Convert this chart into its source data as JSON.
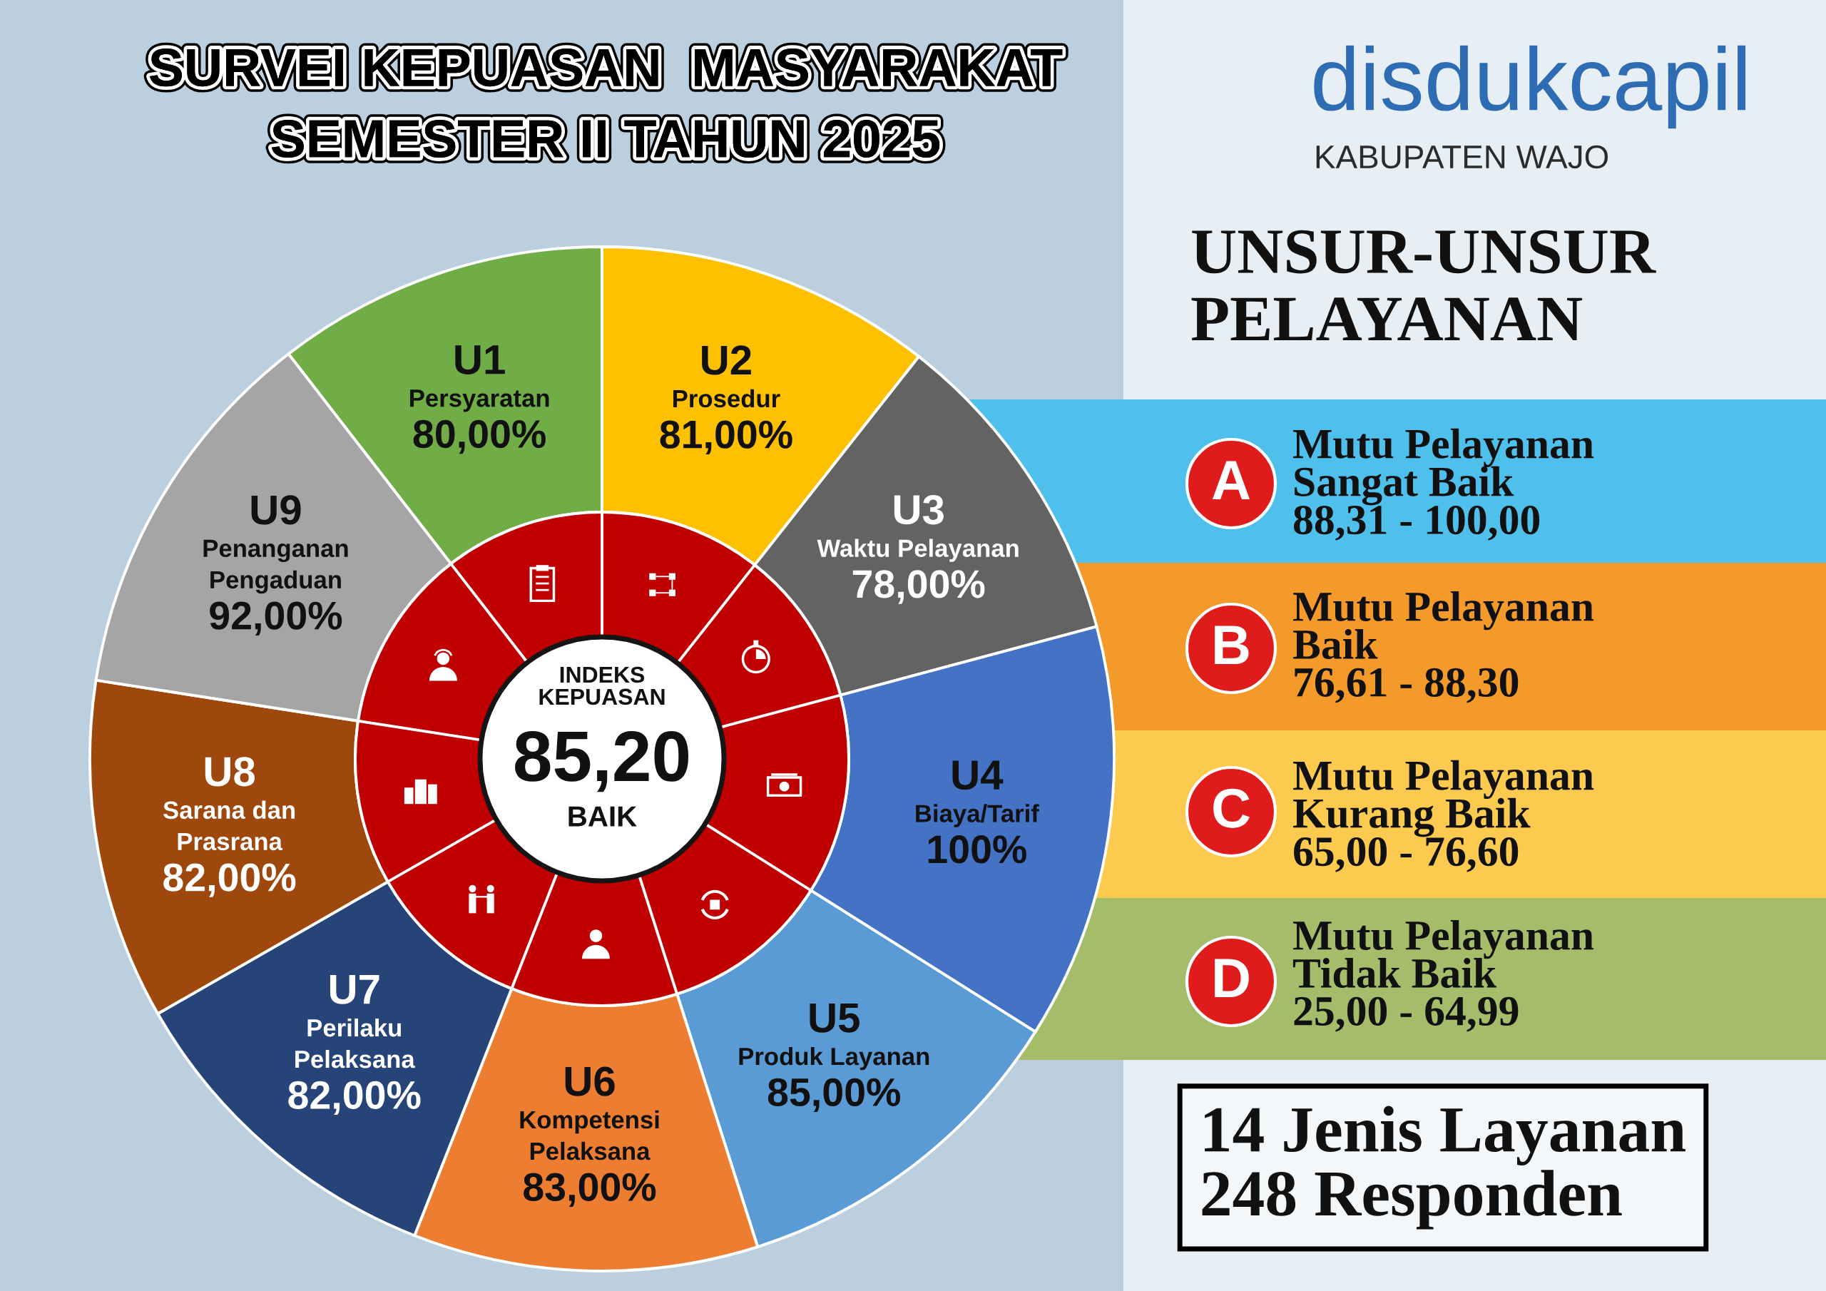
{
  "chart_data": {
    "type": "donut",
    "title": "SURVEI KEPUASAN  MASYARAKAT\nSEMESTER II TAHUN 2025",
    "categories": [
      "U1\nPersyaratan",
      "U2\nProsedur",
      "U3\nWaktu Pelayanan",
      "U4\nBiaya/Tarif",
      "U5\nProduk Layanan",
      "U6\nKompetensi\nPelaksana",
      "U7\nPerilaku\nPelaksana",
      "U8\nSarana dan\nPrasrana",
      "U9\nPenanganan\nPengaduan"
    ],
    "values": [
      80,
      81,
      78,
      100,
      85,
      83,
      82,
      82,
      92
    ],
    "value_labels": [
      "80,00%",
      "81,00%",
      "78,00%",
      "100%",
      "85,00%",
      "83,00%",
      "82,00%",
      "82,00%",
      "92,00%"
    ],
    "colors": [
      "#70ad47",
      "#ffc000",
      "#636363",
      "#4472c4",
      "#5b9bd5",
      "#ed7d31",
      "#264478",
      "#9e480e",
      "#a5a5a5"
    ],
    "annotations": [
      "INDEKS\nKEPUASAN",
      "85,20",
      "BAIK",
      "disdukcapil",
      "KABUPATEN WAJO",
      "UNSUR-UNSUR\nPELAYANAN",
      "A",
      "Mutu Pelayanan\nSangat Baik\n88,31 - 100,00",
      "B",
      "Mutu Pelayanan\nBaik\n76,61 - 88,30",
      "C",
      "Mutu Pelayanan\nKurang Baik\n65,00 - 76,60",
      "D",
      "Mutu Pelayanan\nTidak Baik\n25,00 - 64,99",
      "14 Jenis Layanan\n248 Responden"
    ]
  }
}
